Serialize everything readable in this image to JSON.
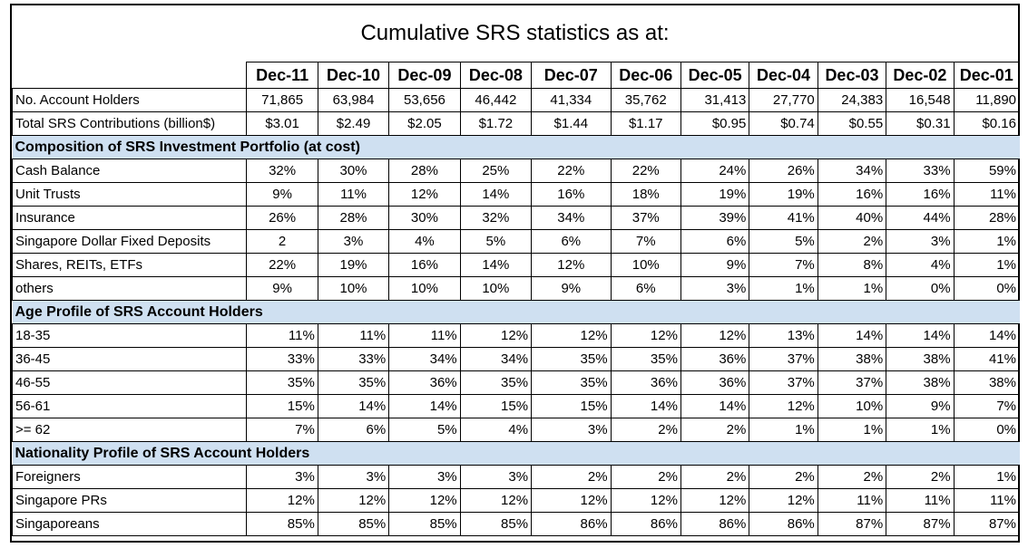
{
  "title": "Cumulative SRS statistics as at:",
  "columns": [
    "Dec-11",
    "Dec-10",
    "Dec-09",
    "Dec-08",
    "Dec-07",
    "Dec-06",
    "Dec-05",
    "Dec-04",
    "Dec-03",
    "Dec-02",
    "Dec-01"
  ],
  "summary_rows": [
    {
      "label": "No. Account Holders",
      "align": "num",
      "values": [
        "71,865",
        "63,984",
        "53,656",
        "46,442",
        "41,334",
        "35,762",
        "31,413",
        "27,770",
        "24,383",
        "16,548",
        "11,890"
      ]
    },
    {
      "label": "Total SRS Contributions (billion$)",
      "align": "mixed",
      "values": [
        "$3.01",
        "$2.49",
        "$2.05",
        "$1.72",
        "$1.44",
        "$1.17",
        "$0.95",
        "$0.74",
        "$0.55",
        "$0.31",
        "$0.16"
      ]
    }
  ],
  "sections": [
    {
      "heading": "Composition of SRS Investment Portfolio (at cost)",
      "rows": [
        {
          "label": "Cash Balance",
          "values": [
            "32%",
            "30%",
            "28%",
            "25%",
            "22%",
            "22%",
            "24%",
            "26%",
            "34%",
            "33%",
            "59%"
          ]
        },
        {
          "label": "Unit Trusts",
          "values": [
            "9%",
            "11%",
            "12%",
            "14%",
            "16%",
            "18%",
            "19%",
            "19%",
            "16%",
            "16%",
            "11%"
          ]
        },
        {
          "label": "Insurance",
          "values": [
            "26%",
            "28%",
            "30%",
            "32%",
            "34%",
            "37%",
            "39%",
            "41%",
            "40%",
            "44%",
            "28%"
          ]
        },
        {
          "label": "Singapore Dollar Fixed Deposits",
          "values": [
            "2",
            "3%",
            "4%",
            "5%",
            "6%",
            "7%",
            "6%",
            "5%",
            "2%",
            "3%",
            "1%"
          ]
        },
        {
          "label": "Shares, REITs, ETFs",
          "values": [
            "22%",
            "19%",
            "16%",
            "14%",
            "12%",
            "10%",
            "9%",
            "7%",
            "8%",
            "4%",
            "1%"
          ]
        },
        {
          "label": "others",
          "values": [
            "9%",
            "10%",
            "10%",
            "10%",
            "9%",
            "6%",
            "3%",
            "1%",
            "1%",
            "0%",
            "0%"
          ]
        }
      ]
    },
    {
      "heading": "Age Profile of SRS Account Holders",
      "rows": [
        {
          "label": "18-35",
          "values": [
            "11%",
            "11%",
            "11%",
            "12%",
            "12%",
            "12%",
            "12%",
            "13%",
            "14%",
            "14%",
            "14%"
          ]
        },
        {
          "label": "36-45",
          "values": [
            "33%",
            "33%",
            "34%",
            "34%",
            "35%",
            "35%",
            "36%",
            "37%",
            "38%",
            "38%",
            "41%"
          ]
        },
        {
          "label": "46-55",
          "values": [
            "35%",
            "35%",
            "36%",
            "35%",
            "35%",
            "36%",
            "36%",
            "37%",
            "37%",
            "38%",
            "38%"
          ]
        },
        {
          "label": "56-61",
          "values": [
            "15%",
            "14%",
            "14%",
            "15%",
            "15%",
            "14%",
            "14%",
            "12%",
            "10%",
            "9%",
            "7%"
          ]
        },
        {
          "label": ">= 62",
          "values": [
            "7%",
            "6%",
            "5%",
            "4%",
            "3%",
            "2%",
            "2%",
            "1%",
            "1%",
            "1%",
            "0%"
          ]
        }
      ]
    },
    {
      "heading": "Nationality Profile of SRS Account Holders",
      "rows": [
        {
          "label": "Foreigners",
          "values": [
            "3%",
            "3%",
            "3%",
            "3%",
            "2%",
            "2%",
            "2%",
            "2%",
            "2%",
            "2%",
            "1%"
          ]
        },
        {
          "label": "Singapore PRs",
          "values": [
            "12%",
            "12%",
            "12%",
            "12%",
            "12%",
            "12%",
            "12%",
            "12%",
            "11%",
            "11%",
            "11%"
          ]
        },
        {
          "label": "Singaporeans",
          "values": [
            "85%",
            "85%",
            "85%",
            "85%",
            "86%",
            "86%",
            "86%",
            "86%",
            "87%",
            "87%",
            "87%"
          ]
        }
      ]
    }
  ],
  "colors": {
    "section_band": "#cfe0f1",
    "border": "#000000"
  }
}
